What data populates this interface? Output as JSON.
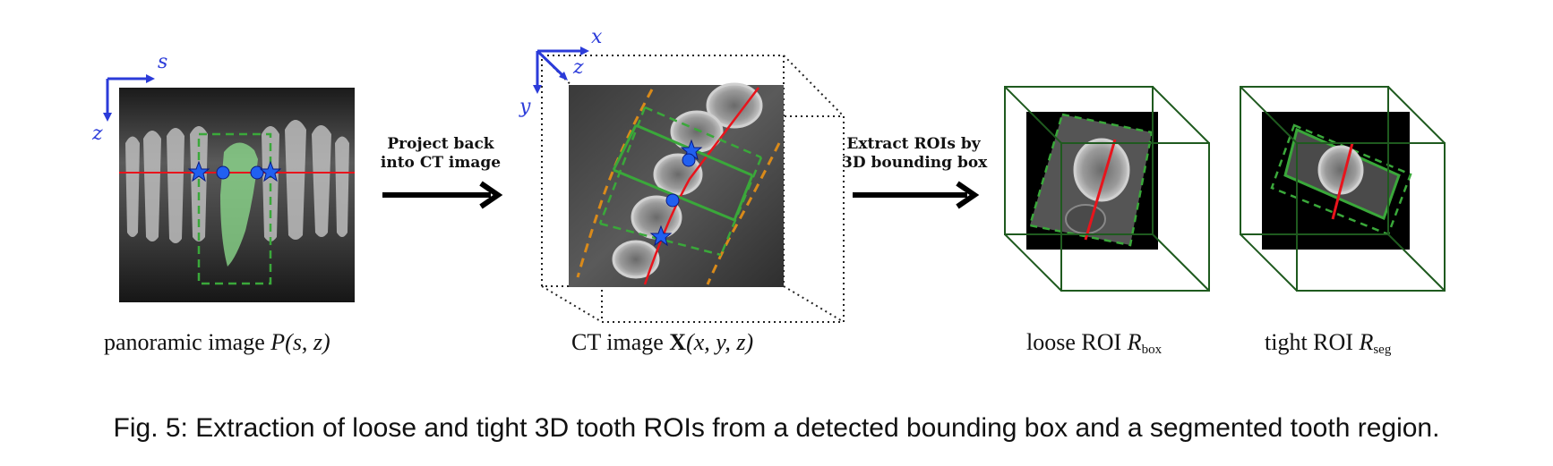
{
  "labels": {
    "panoramic_text": "panoramic image ",
    "panoramic_var": "P",
    "panoramic_args": "(s, z)",
    "ct_text": "CT image ",
    "ct_var": "X",
    "ct_args": "(x, y, z)",
    "loose_text": "loose ROI ",
    "loose_var": "R",
    "loose_sub": "box",
    "tight_text": "tight ROI ",
    "tight_var": "R",
    "tight_sub": "seg"
  },
  "steps": {
    "step1_line1": "Project back",
    "step1_line2": "into CT image",
    "step2_line1": "Extract ROIs by",
    "step2_line2": "3D bounding box"
  },
  "axes": {
    "pan_horizontal": "s",
    "pan_vertical": "z",
    "ct_x": "x",
    "ct_y": "y",
    "ct_z": "z"
  },
  "caption": "Fig. 5: Extraction of loose and tight 3D tooth ROIs from a detected bounding box and a segmented tooth region.",
  "colors": {
    "axis_blue": "#2b3bd9",
    "red_line": "#e8141c",
    "box_green": "#3aa83a",
    "cube_dark_green": "#1f5a1f",
    "orange_dash": "#d98a1a",
    "marker_blue": "#2160f0"
  }
}
